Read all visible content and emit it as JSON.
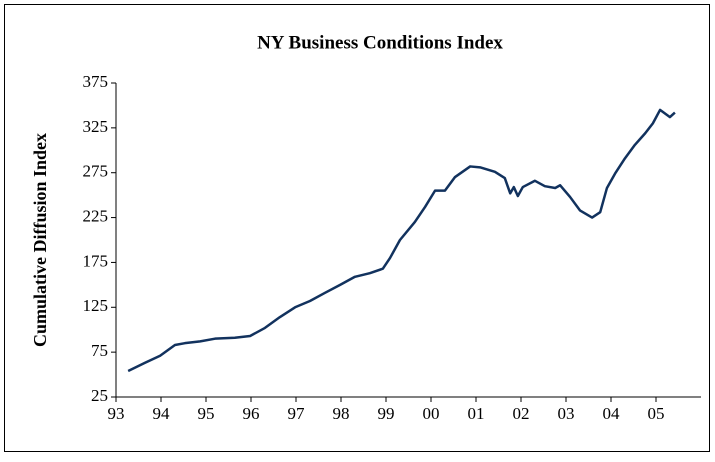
{
  "chart_data": {
    "type": "line",
    "title": "NY Business Conditions Index",
    "y_label": "Cumulative Diffusion Index",
    "x": [
      93.27,
      93.64,
      93.98,
      94.31,
      94.53,
      94.87,
      95.2,
      95.64,
      95.98,
      96.31,
      96.64,
      96.98,
      97.31,
      97.64,
      97.98,
      98.31,
      98.64,
      98.93,
      99.09,
      99.31,
      99.64,
      99.87,
      100.09,
      100.31,
      100.53,
      100.87,
      101.09,
      101.42,
      101.64,
      101.76,
      101.84,
      101.93,
      102.04,
      102.31,
      102.53,
      102.76,
      102.87,
      103.09,
      103.31,
      103.58,
      103.76,
      103.91,
      104.09,
      104.31,
      104.53,
      104.76,
      104.93,
      105.09,
      105.31,
      105.42
    ],
    "series": [
      {
        "name": "NY Business Conditions Index",
        "color": "#12325e",
        "values": [
          54,
          63,
          71,
          83,
          85,
          87,
          90,
          91,
          93,
          102,
          114,
          125,
          132,
          141,
          150,
          159,
          163,
          168,
          180,
          200,
          220,
          237,
          255,
          255,
          270,
          282,
          281,
          276,
          269,
          252,
          259,
          249,
          259,
          266,
          260,
          258,
          261,
          248,
          233,
          225,
          231,
          258,
          274,
          291,
          306,
          319,
          330,
          345,
          337,
          342
        ]
      }
    ],
    "xlim": [
      93,
      106
    ],
    "xticks": [
      93,
      94,
      95,
      96,
      97,
      98,
      99,
      {
        "value": 100,
        "label": "00"
      },
      {
        "value": 101,
        "label": "01"
      },
      {
        "value": 102,
        "label": "02"
      },
      {
        "value": 103,
        "label": "03"
      },
      {
        "value": 104,
        "label": "04"
      },
      {
        "value": 105,
        "label": "05"
      }
    ],
    "ylim": [
      25,
      375
    ],
    "yticks": [
      25,
      75,
      125,
      175,
      225,
      275,
      325,
      375
    ],
    "grid": false
  }
}
